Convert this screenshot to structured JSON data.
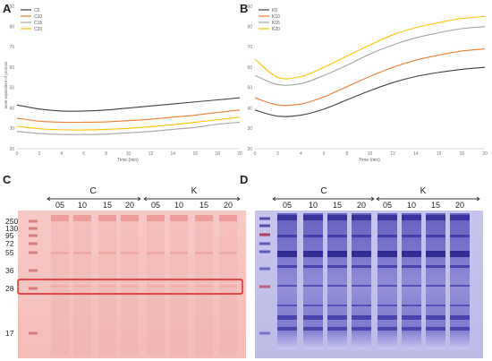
{
  "panels": {
    "A": "A",
    "B": "B",
    "C": "C",
    "D": "D"
  },
  "chart_data": [
    {
      "panel": "A",
      "type": "line",
      "ylabel": "mole equivalent of protons",
      "xlabel": "Time (min)",
      "xlim": [
        0,
        20
      ],
      "ylim": [
        20,
        90
      ],
      "xticks": [
        0,
        2,
        4,
        6,
        8,
        10,
        12,
        14,
        16,
        18,
        20
      ],
      "yticks": [
        20,
        30,
        40,
        50,
        60,
        70,
        80,
        90
      ],
      "grid": false,
      "legend": "top-left",
      "x": [
        0,
        2,
        4,
        6,
        8,
        10,
        12,
        14,
        16,
        18,
        20
      ],
      "series": [
        {
          "name": "C5",
          "color": "#404040",
          "values": [
            41.5,
            39.5,
            38.5,
            38.5,
            39.0,
            40.0,
            41.0,
            42.0,
            43.0,
            44.0,
            45.0
          ]
        },
        {
          "name": "C10",
          "color": "#ed7d31",
          "values": [
            35.0,
            33.5,
            33.0,
            33.0,
            33.2,
            33.8,
            34.5,
            35.5,
            36.5,
            37.8,
            39.0
          ]
        },
        {
          "name": "C15",
          "color": "#a5a5a5",
          "values": [
            28.5,
            27.5,
            27.0,
            27.0,
            27.2,
            27.8,
            28.5,
            29.5,
            30.5,
            32.0,
            33.0
          ]
        },
        {
          "name": "C20",
          "color": "#ffc000",
          "values": [
            31.0,
            29.8,
            29.3,
            29.2,
            29.5,
            30.0,
            30.8,
            31.8,
            33.0,
            34.2,
            35.5
          ]
        }
      ]
    },
    {
      "panel": "B",
      "type": "line",
      "xlabel": "Time (min)",
      "xlim": [
        0,
        20
      ],
      "ylim": [
        20,
        90
      ],
      "xticks": [
        0,
        2,
        4,
        6,
        8,
        10,
        12,
        14,
        16,
        18,
        20
      ],
      "yticks": [
        20,
        30,
        40,
        50,
        60,
        70,
        80,
        90
      ],
      "grid": false,
      "legend": "top-left",
      "x": [
        0,
        2,
        4,
        6,
        8,
        10,
        12,
        14,
        16,
        18,
        20
      ],
      "series": [
        {
          "name": "K5",
          "color": "#404040",
          "values": [
            39.0,
            36.0,
            36.5,
            39.5,
            44.0,
            48.5,
            52.5,
            55.5,
            57.5,
            59.0,
            60.0
          ]
        },
        {
          "name": "K10",
          "color": "#ed7d31",
          "values": [
            45.0,
            41.5,
            42.0,
            45.5,
            50.5,
            55.5,
            60.0,
            63.5,
            66.0,
            68.0,
            69.0
          ]
        },
        {
          "name": "K15",
          "color": "#a5a5a5",
          "values": [
            56.0,
            51.5,
            52.0,
            56.0,
            61.0,
            66.5,
            71.0,
            74.5,
            77.0,
            79.0,
            80.0
          ]
        },
        {
          "name": "K20",
          "color": "#ffc000",
          "values": [
            64.0,
            55.0,
            55.5,
            60.0,
            65.5,
            71.0,
            76.0,
            79.5,
            82.0,
            84.0,
            85.0
          ]
        }
      ]
    }
  ],
  "gels": {
    "C": {
      "group_labels": [
        "C",
        "K"
      ],
      "lane_labels": [
        "05",
        "10",
        "15",
        "20",
        "05",
        "10",
        "15",
        "20"
      ],
      "marker_labels": [
        "250",
        "130",
        "95",
        "72",
        "55",
        "36",
        "28",
        "17"
      ],
      "stain_color": "#f6c8c4",
      "highlight_color": "#e0202a",
      "highlight_band": "28"
    },
    "D": {
      "group_labels": [
        "C",
        "K"
      ],
      "lane_labels": [
        "05",
        "10",
        "15",
        "20",
        "05",
        "10",
        "15",
        "20"
      ],
      "stain_color": "#7b76c8"
    }
  }
}
